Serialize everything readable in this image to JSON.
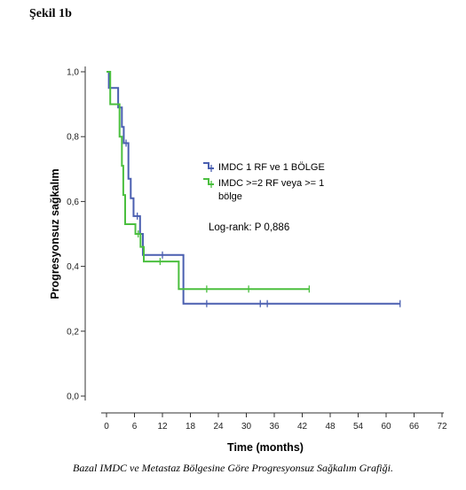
{
  "figure_label": "Şekil 1b",
  "caption": "Bazal IMDC ve Metastaz Bölgesine Göre Progresyonsuz Sağkalım Grafiği.",
  "colors": {
    "series1": "#4a5fb0",
    "series2": "#4bbf3f",
    "axis": "#333333"
  },
  "chart_data": {
    "type": "line",
    "subtype": "kaplan-meier-step",
    "xlabel": "Time (months)",
    "ylabel": "Progresyonsuz sağkalım",
    "xlim": [
      0,
      72
    ],
    "ylim": [
      0,
      1
    ],
    "x_ticks": [
      0,
      6,
      12,
      18,
      24,
      30,
      36,
      42,
      48,
      54,
      60,
      66,
      72
    ],
    "y_ticks": [
      0.0,
      0.2,
      0.4,
      0.6,
      0.8,
      1.0
    ],
    "y_tick_labels": [
      "0,0",
      "0,2",
      "0,4",
      "0,6",
      "0,8",
      "1,0"
    ],
    "grid": false,
    "legend_position": "center-right",
    "annotations": [
      "Log-rank: P 0,886"
    ],
    "series": [
      {
        "name": "IMDC 1 RF ve 1 BÖLGE",
        "color": "#4a5fb0",
        "steps": [
          [
            0,
            1.0
          ],
          [
            0.5,
            0.95
          ],
          [
            2.5,
            0.89
          ],
          [
            3.3,
            0.83
          ],
          [
            3.7,
            0.78
          ],
          [
            4.7,
            0.67
          ],
          [
            5.2,
            0.61
          ],
          [
            5.8,
            0.555
          ],
          [
            7.2,
            0.5
          ],
          [
            7.8,
            0.435
          ],
          [
            16.5,
            0.285
          ],
          [
            63,
            0.285
          ]
        ],
        "censored": [
          [
            4.2,
            0.78
          ],
          [
            6.6,
            0.555
          ],
          [
            12.0,
            0.435
          ],
          [
            21.5,
            0.285
          ],
          [
            33.0,
            0.285
          ],
          [
            34.5,
            0.285
          ],
          [
            63,
            0.285
          ]
        ]
      },
      {
        "name": "IMDC >=2 RF veya >= 1 bölge",
        "color": "#4bbf3f",
        "steps": [
          [
            0,
            1.0
          ],
          [
            0.8,
            0.9
          ],
          [
            2.8,
            0.8
          ],
          [
            3.3,
            0.71
          ],
          [
            3.6,
            0.62
          ],
          [
            4.0,
            0.53
          ],
          [
            6.2,
            0.5
          ],
          [
            7.3,
            0.46
          ],
          [
            8.0,
            0.415
          ],
          [
            15.5,
            0.33
          ],
          [
            43.5,
            0.33
          ]
        ],
        "censored": [
          [
            6.8,
            0.5
          ],
          [
            11.5,
            0.415
          ],
          [
            21.5,
            0.33
          ],
          [
            30.5,
            0.33
          ],
          [
            43.5,
            0.33
          ]
        ]
      }
    ],
    "legend": [
      {
        "lines": [
          "IMDC 1 RF ve 1 BÖLGE"
        ]
      },
      {
        "lines": [
          "IMDC >=2 RF veya >= 1",
          "bölge"
        ]
      }
    ]
  }
}
